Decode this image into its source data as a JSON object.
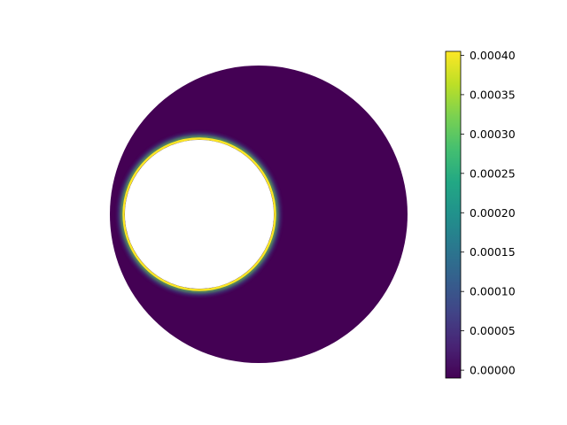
{
  "chart_data": {
    "type": "heatmap",
    "description_fields": {
      "domain_shape": "annulus (disk with off-center circular hole)",
      "colormap": "viridis"
    },
    "title": "",
    "xlabel": "",
    "ylabel": "",
    "grid": false,
    "axes_visible": false,
    "field": {
      "background_value": 0.0,
      "hole_boundary_peak_value": 0.0004
    },
    "colorbar": {
      "min": -1e-05,
      "max": 0.000405,
      "ticks": [
        {
          "value": 0.0,
          "label": "0.00000"
        },
        {
          "value": 5e-05,
          "label": "0.00005"
        },
        {
          "value": 0.0001,
          "label": "0.00010"
        },
        {
          "value": 0.00015,
          "label": "0.00015"
        },
        {
          "value": 0.0002,
          "label": "0.00020"
        },
        {
          "value": 0.00025,
          "label": "0.00025"
        },
        {
          "value": 0.0003,
          "label": "0.00030"
        },
        {
          "value": 0.00035,
          "label": "0.00035"
        },
        {
          "value": 0.0004,
          "label": "0.00040"
        }
      ]
    },
    "colors": {
      "low": "#440154",
      "high": "#fde725"
    }
  }
}
